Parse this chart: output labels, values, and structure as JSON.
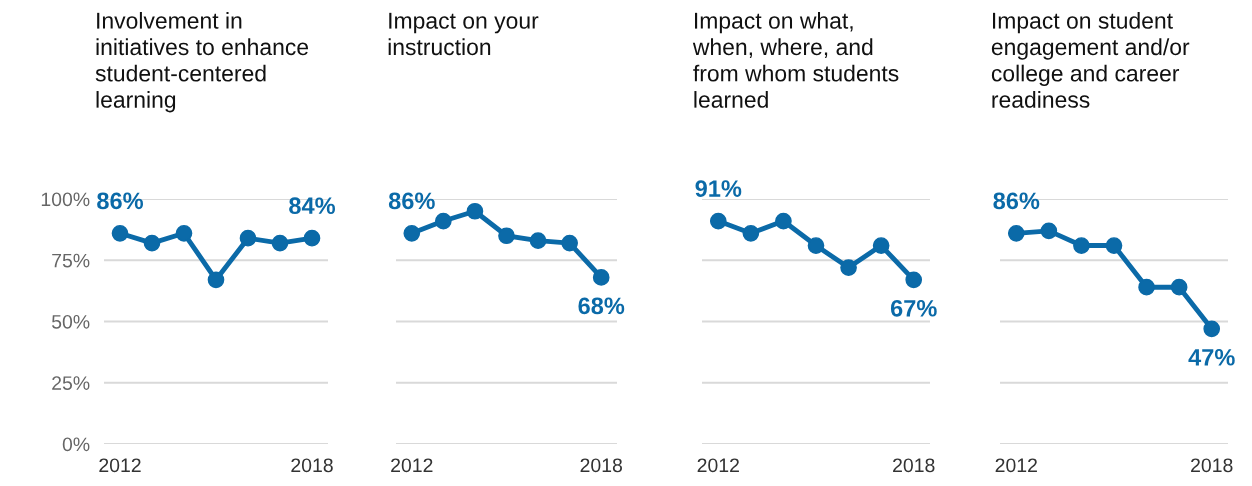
{
  "chart_data": [
    {
      "type": "line",
      "title": "Involvement in\ninitiatives to enhance\nstudent-centered\nlearning",
      "categories": [
        "2012",
        null,
        null,
        null,
        null,
        null,
        "2018"
      ],
      "series": [
        {
          "color": "#0b6aa8",
          "values": [
            86,
            82,
            86,
            67,
            84,
            82,
            84
          ],
          "value_labels": [
            "86%",
            null,
            null,
            null,
            null,
            null,
            "84%"
          ]
        }
      ],
      "ylim": [
        0,
        100
      ],
      "yticks": [
        {
          "value": 0,
          "label": "0%"
        },
        {
          "value": 25,
          "label": "25%"
        },
        {
          "value": 50,
          "label": "50%"
        },
        {
          "value": 75,
          "label": "75%"
        },
        {
          "value": 100,
          "label": "100%"
        }
      ],
      "grid": "y",
      "legend": false,
      "marker": "circle",
      "line_style": "solid"
    },
    {
      "type": "line",
      "title": "Impact on your\ninstruction",
      "categories": [
        "2012",
        null,
        null,
        null,
        null,
        null,
        "2018"
      ],
      "series": [
        {
          "color": "#0b6aa8",
          "values": [
            86,
            91,
            95,
            85,
            83,
            82,
            68
          ],
          "value_labels": [
            "86%",
            null,
            null,
            null,
            null,
            null,
            "68%"
          ]
        }
      ],
      "ylim": [
        0,
        100
      ],
      "yticks": [
        {
          "value": 0,
          "label": null
        },
        {
          "value": 25,
          "label": null
        },
        {
          "value": 50,
          "label": null
        },
        {
          "value": 75,
          "label": null
        },
        {
          "value": 100,
          "label": null
        }
      ],
      "grid": "y",
      "legend": false,
      "marker": "circle",
      "line_style": "solid",
      "tick_labels": "x"
    },
    {
      "type": "line",
      "title": "Impact on what,\nwhen, where, and\nfrom whom students\nlearned",
      "categories": [
        "2012",
        null,
        null,
        null,
        null,
        null,
        "2018"
      ],
      "series": [
        {
          "color": "#0b6aa8",
          "values": [
            91,
            86,
            91,
            81,
            72,
            81,
            67
          ],
          "value_labels": [
            "91%",
            null,
            null,
            null,
            null,
            null,
            "67%"
          ]
        }
      ],
      "ylim": [
        0,
        100
      ],
      "yticks": [
        {
          "value": 0,
          "label": null
        },
        {
          "value": 25,
          "label": null
        },
        {
          "value": 50,
          "label": null
        },
        {
          "value": 75,
          "label": null
        },
        {
          "value": 100,
          "label": null
        }
      ],
      "grid": "y",
      "legend": false,
      "marker": "circle",
      "line_style": "solid",
      "tick_labels": "x"
    },
    {
      "type": "line",
      "title": "Impact on student\nengagement and/or\ncollege and career\nreadiness",
      "categories": [
        "2012",
        null,
        null,
        null,
        null,
        null,
        "2018"
      ],
      "series": [
        {
          "color": "#0b6aa8",
          "values": [
            86,
            87,
            81,
            81,
            64,
            64,
            47
          ],
          "value_labels": [
            "86%",
            null,
            null,
            null,
            null,
            null,
            "47%"
          ]
        }
      ],
      "ylim": [
        0,
        100
      ],
      "yticks": [
        {
          "value": 0,
          "label": null
        },
        {
          "value": 25,
          "label": null
        },
        {
          "value": 50,
          "label": null
        },
        {
          "value": 75,
          "label": null
        },
        {
          "value": 100,
          "label": null
        }
      ],
      "grid": "y",
      "legend": false,
      "marker": "circle",
      "line_style": "solid",
      "tick_labels": "x"
    }
  ]
}
